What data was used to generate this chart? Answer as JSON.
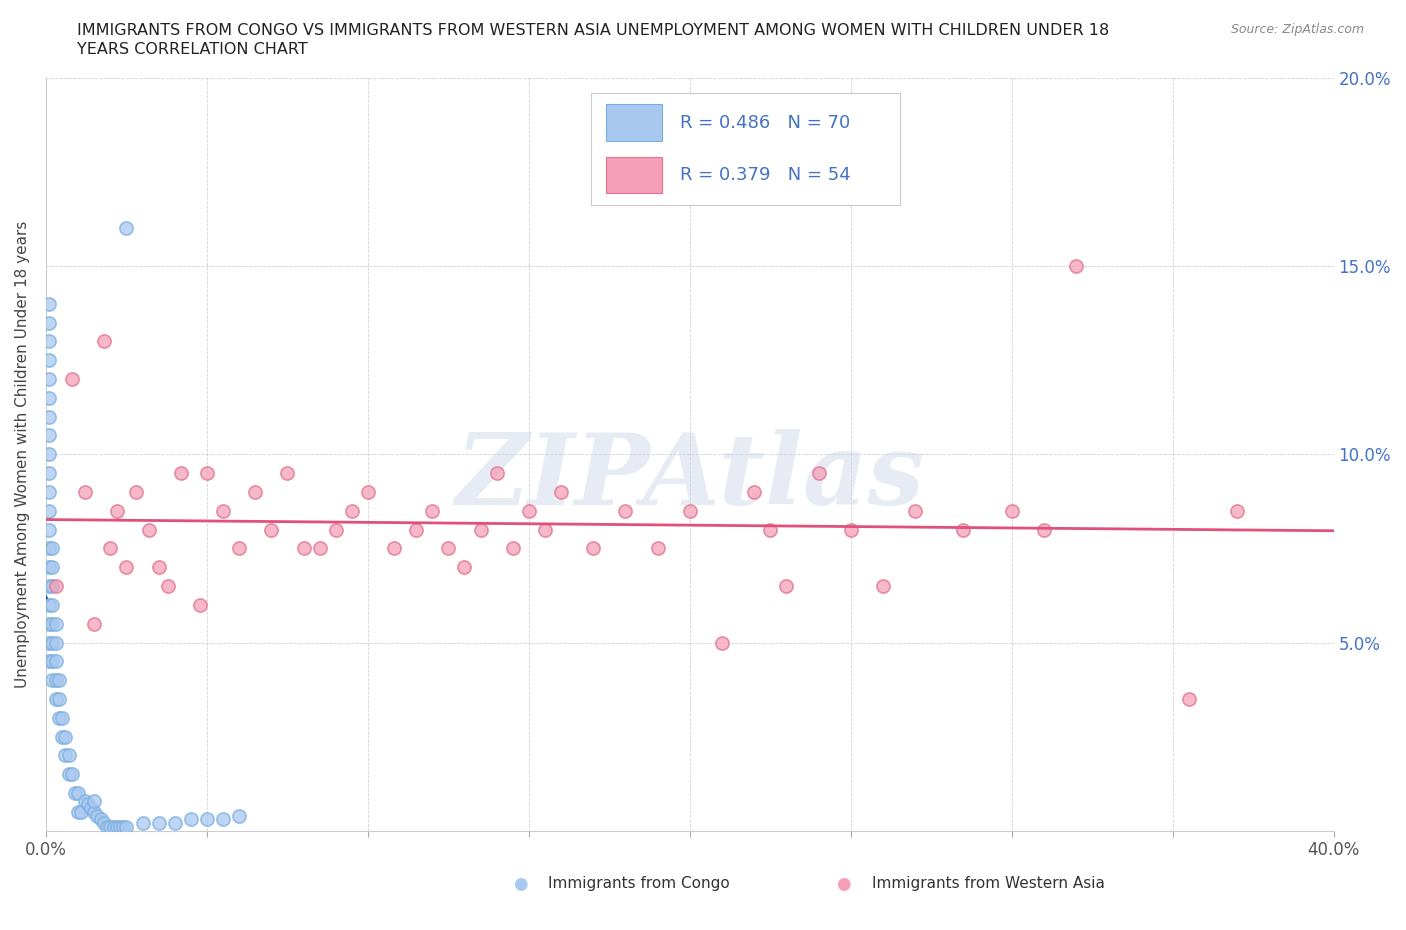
{
  "title_line1": "IMMIGRANTS FROM CONGO VS IMMIGRANTS FROM WESTERN ASIA UNEMPLOYMENT AMONG WOMEN WITH CHILDREN UNDER 18",
  "title_line2": "YEARS CORRELATION CHART",
  "source": "Source: ZipAtlas.com",
  "ylabel": "Unemployment Among Women with Children Under 18 years",
  "xlim": [
    0.0,
    0.4
  ],
  "ylim": [
    0.0,
    0.2
  ],
  "congo_R": 0.486,
  "congo_N": 70,
  "western_R": 0.379,
  "western_N": 54,
  "congo_color": "#a8c8f0",
  "congo_edge_color": "#7aaede",
  "congo_line_color": "#1a5faa",
  "western_color": "#f5a0b8",
  "western_edge_color": "#e07090",
  "western_line_color": "#e0507a",
  "background_color": "#ffffff",
  "watermark": "ZIPAtlas",
  "congo_x": [
    0.001,
    0.001,
    0.001,
    0.001,
    0.001,
    0.001,
    0.001,
    0.001,
    0.001,
    0.001,
    0.001,
    0.001,
    0.001,
    0.001,
    0.001,
    0.001,
    0.001,
    0.001,
    0.001,
    0.001,
    0.002,
    0.002,
    0.002,
    0.002,
    0.002,
    0.002,
    0.002,
    0.002,
    0.003,
    0.003,
    0.003,
    0.003,
    0.003,
    0.004,
    0.004,
    0.004,
    0.005,
    0.005,
    0.006,
    0.006,
    0.007,
    0.007,
    0.008,
    0.009,
    0.01,
    0.01,
    0.011,
    0.012,
    0.013,
    0.014,
    0.015,
    0.015,
    0.016,
    0.017,
    0.018,
    0.019,
    0.02,
    0.021,
    0.022,
    0.023,
    0.024,
    0.025,
    0.025,
    0.03,
    0.035,
    0.04,
    0.045,
    0.05,
    0.055,
    0.06
  ],
  "congo_y": [
    0.065,
    0.07,
    0.075,
    0.08,
    0.085,
    0.09,
    0.095,
    0.1,
    0.105,
    0.11,
    0.115,
    0.12,
    0.125,
    0.13,
    0.135,
    0.14,
    0.05,
    0.055,
    0.06,
    0.045,
    0.04,
    0.045,
    0.05,
    0.055,
    0.06,
    0.065,
    0.07,
    0.075,
    0.035,
    0.04,
    0.045,
    0.05,
    0.055,
    0.03,
    0.035,
    0.04,
    0.025,
    0.03,
    0.02,
    0.025,
    0.015,
    0.02,
    0.015,
    0.01,
    0.005,
    0.01,
    0.005,
    0.008,
    0.007,
    0.006,
    0.005,
    0.008,
    0.004,
    0.003,
    0.002,
    0.001,
    0.001,
    0.001,
    0.001,
    0.001,
    0.001,
    0.001,
    0.16,
    0.002,
    0.002,
    0.002,
    0.003,
    0.003,
    0.003,
    0.004
  ],
  "western_x": [
    0.003,
    0.008,
    0.012,
    0.015,
    0.018,
    0.02,
    0.022,
    0.025,
    0.028,
    0.032,
    0.035,
    0.038,
    0.042,
    0.048,
    0.05,
    0.055,
    0.06,
    0.065,
    0.07,
    0.075,
    0.08,
    0.085,
    0.09,
    0.095,
    0.1,
    0.108,
    0.115,
    0.12,
    0.125,
    0.13,
    0.135,
    0.14,
    0.145,
    0.15,
    0.155,
    0.16,
    0.17,
    0.18,
    0.19,
    0.2,
    0.21,
    0.22,
    0.225,
    0.23,
    0.24,
    0.25,
    0.26,
    0.27,
    0.285,
    0.3,
    0.31,
    0.32,
    0.355,
    0.37
  ],
  "western_y": [
    0.065,
    0.12,
    0.09,
    0.055,
    0.13,
    0.075,
    0.085,
    0.07,
    0.09,
    0.08,
    0.07,
    0.065,
    0.095,
    0.06,
    0.095,
    0.085,
    0.075,
    0.09,
    0.08,
    0.095,
    0.075,
    0.075,
    0.08,
    0.085,
    0.09,
    0.075,
    0.08,
    0.085,
    0.075,
    0.07,
    0.08,
    0.095,
    0.075,
    0.085,
    0.08,
    0.09,
    0.075,
    0.085,
    0.075,
    0.085,
    0.05,
    0.09,
    0.08,
    0.065,
    0.095,
    0.08,
    0.065,
    0.085,
    0.08,
    0.085,
    0.08,
    0.15,
    0.035,
    0.085
  ],
  "xtick_positions": [
    0.0,
    0.05,
    0.1,
    0.15,
    0.2,
    0.25,
    0.3,
    0.35,
    0.4
  ],
  "xtick_labels": [
    "0.0%",
    "",
    "",
    "",
    "",
    "",
    "",
    "",
    "40.0%"
  ],
  "ytick_positions": [
    0.0,
    0.05,
    0.1,
    0.15,
    0.2
  ],
  "ytick_labels_right": [
    "",
    "5.0%",
    "10.0%",
    "15.0%",
    "20.0%"
  ]
}
